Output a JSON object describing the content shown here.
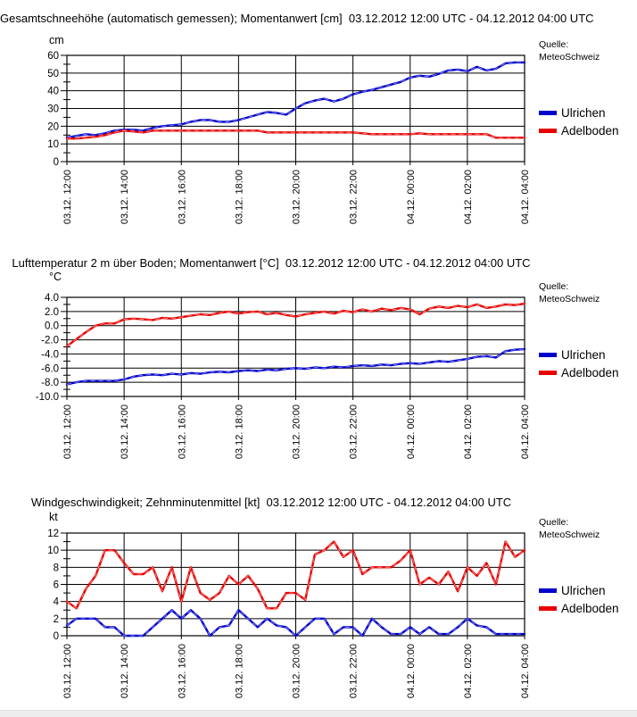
{
  "source": {
    "line1": "Quelle:",
    "line2": "MeteoSchweiz"
  },
  "colors": {
    "ulrichen": "#0000CC",
    "adelboden": "#E80000",
    "grid": "#000000"
  },
  "chart_data": [
    {
      "type": "line",
      "title": "Gesamtschneehöhe (automatisch gemessen); Momentanwert [cm]  03.12.2012 12:00 UTC - 04.12.2012 04:00 UTC",
      "ylabel": "cm",
      "ylim": [
        0,
        60
      ],
      "ytick_step": 10,
      "ytick_decimals": 0,
      "minor_tick_step": 5,
      "grid": true,
      "legend_position": "right",
      "x_start": "03.12.2012 12:00 UTC",
      "x_end": "04.12.2012 04:00 UTC",
      "value_interval_minutes": 20,
      "x_tick_labels": [
        "03.12. 12:00",
        "03.12. 14:00",
        "03.12. 16:00",
        "03.12. 18:00",
        "03.12. 20:00",
        "03.12. 22:00",
        "04.12. 00:00",
        "04.12. 02:00",
        "04.12. 04:00"
      ],
      "series": [
        {
          "name": "Ulrichen",
          "color": "#0000CC",
          "values": [
            13.5,
            14.5,
            15.5,
            15,
            16,
            17.5,
            18,
            18,
            17.5,
            19,
            20,
            20.5,
            21,
            22.5,
            23.5,
            23.5,
            22.5,
            22.5,
            23.5,
            25,
            26.5,
            28,
            27.5,
            26.5,
            30,
            33,
            34.5,
            35.5,
            34,
            35.5,
            38,
            39.5,
            40.5,
            42,
            43.5,
            45,
            47.5,
            48.5,
            48,
            49.5,
            51.5,
            52,
            51,
            53.5,
            51.5,
            52.5,
            55.5,
            56,
            56
          ]
        },
        {
          "name": "Adelboden",
          "color": "#E80000",
          "values": [
            13,
            13,
            13.5,
            14,
            15,
            16.5,
            17.5,
            17,
            16.5,
            17.5,
            17.5,
            17.5,
            17.5,
            17.5,
            17.5,
            17.5,
            17.5,
            17.5,
            17.5,
            17.5,
            17.5,
            16.5,
            16.5,
            16.5,
            16.5,
            16.5,
            16.5,
            16.5,
            16.5,
            16.5,
            16.5,
            16,
            15.5,
            15.5,
            15.5,
            15.5,
            15.5,
            16,
            15.5,
            15.5,
            15.5,
            15.5,
            15.5,
            15.5,
            15.5,
            13.5,
            13.5,
            13.5,
            13.5
          ]
        }
      ]
    },
    {
      "type": "line",
      "title": "Lufttemperatur 2 m über Boden; Momentanwert [°C]  03.12.2012 12:00 UTC - 04.12.2012 04:00 UTC",
      "ylabel": "°C",
      "ylim": [
        -10,
        4
      ],
      "ytick_step": 2,
      "ytick_decimals": 1,
      "minor_tick_step": 1,
      "grid": true,
      "legend_position": "right",
      "x_start": "03.12.2012 12:00 UTC",
      "x_end": "04.12.2012 04:00 UTC",
      "value_interval_minutes": 20,
      "x_tick_labels": [
        "03.12. 12:00",
        "03.12. 14:00",
        "03.12. 16:00",
        "03.12. 18:00",
        "03.12. 20:00",
        "03.12. 22:00",
        "04.12. 00:00",
        "04.12. 02:00",
        "04.12. 04:00"
      ],
      "series": [
        {
          "name": "Ulrichen",
          "color": "#0000CC",
          "values": [
            -8.3,
            -8,
            -7.8,
            -7.8,
            -7.8,
            -7.8,
            -7.6,
            -7.2,
            -7,
            -6.9,
            -7,
            -6.8,
            -6.9,
            -6.7,
            -6.8,
            -6.6,
            -6.5,
            -6.6,
            -6.4,
            -6.3,
            -6.4,
            -6.2,
            -6.3,
            -6.1,
            -6,
            -6.1,
            -5.9,
            -6,
            -5.8,
            -5.9,
            -5.7,
            -5.6,
            -5.7,
            -5.5,
            -5.6,
            -5.4,
            -5.3,
            -5.4,
            -5.2,
            -5,
            -5.1,
            -4.9,
            -4.7,
            -4.4,
            -4.3,
            -4.5,
            -3.6,
            -3.4,
            -3.3
          ]
        },
        {
          "name": "Adelboden",
          "color": "#E80000",
          "values": [
            -2.9,
            -1.9,
            -0.9,
            0,
            0.3,
            0.3,
            0.9,
            1,
            0.9,
            0.8,
            1.1,
            1,
            1.2,
            1.4,
            1.6,
            1.5,
            1.8,
            2,
            1.7,
            1.9,
            2,
            1.6,
            1.8,
            1.5,
            1.3,
            1.6,
            1.8,
            2,
            1.7,
            2.1,
            1.9,
            2.3,
            2,
            2.4,
            2.2,
            2.5,
            2.3,
            1.6,
            2.4,
            2.7,
            2.5,
            2.8,
            2.6,
            3,
            2.5,
            2.7,
            3,
            2.9,
            3.1
          ]
        }
      ]
    },
    {
      "type": "line",
      "title": "Windgeschwindigkeit; Zehnminutenmittel [kt]  03.12.2012 12:00 UTC - 04.12.2012 04:00 UTC",
      "ylabel": "kt",
      "ylim": [
        0,
        12
      ],
      "ytick_step": 2,
      "ytick_decimals": 0,
      "minor_tick_step": 1,
      "grid": true,
      "legend_position": "right",
      "x_start": "03.12.2012 12:00 UTC",
      "x_end": "04.12.2012 04:00 UTC",
      "value_interval_minutes": 20,
      "x_tick_labels": [
        "03.12. 12:00",
        "03.12. 14:00",
        "03.12. 16:00",
        "03.12. 18:00",
        "03.12. 20:00",
        "03.12. 22:00",
        "04.12. 00:00",
        "04.12. 02:00",
        "04.12. 04:00"
      ],
      "series": [
        {
          "name": "Ulrichen",
          "color": "#0000CC",
          "values": [
            1.2,
            2,
            2,
            2,
            1,
            1,
            0,
            0,
            0,
            1,
            2,
            3,
            2,
            3,
            2,
            0,
            1,
            1.2,
            3,
            2,
            1,
            2,
            1.2,
            1,
            0,
            1,
            2,
            2,
            0.2,
            1,
            1,
            0,
            2,
            1,
            0.2,
            0.2,
            1,
            0.2,
            1,
            0.2,
            0.2,
            1,
            2,
            1.2,
            1,
            0.2,
            0.2,
            0.2,
            0.2
          ]
        },
        {
          "name": "Adelboden",
          "color": "#E80000",
          "values": [
            4,
            3.2,
            5.5,
            7,
            10,
            10,
            8.5,
            7.2,
            7.2,
            8,
            5.2,
            8,
            4,
            8,
            5,
            4.2,
            5,
            7,
            6,
            7,
            5.5,
            3.2,
            3.2,
            5,
            5,
            4.2,
            9.5,
            10,
            11,
            9.2,
            10,
            7.2,
            8,
            8,
            8,
            8.8,
            10,
            6,
            6.8,
            6,
            7.5,
            5.2,
            8,
            7,
            8.5,
            6,
            11,
            9.2,
            10
          ]
        }
      ]
    }
  ]
}
